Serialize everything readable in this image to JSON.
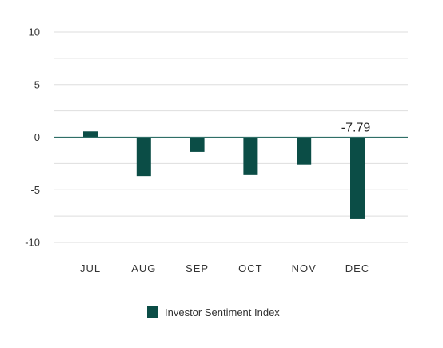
{
  "chart_data": {
    "type": "bar",
    "categories": [
      "JUL",
      "AUG",
      "SEP",
      "OCT",
      "NOV",
      "DEC"
    ],
    "series": [
      {
        "name": "Investor Sentiment Index",
        "values": [
          0.55,
          -3.7,
          -1.4,
          -3.6,
          -2.6,
          -7.79
        ]
      }
    ],
    "ylim": [
      -10,
      10
    ],
    "y_ticks": [
      10,
      5,
      0,
      -5,
      -10
    ],
    "grid": true,
    "legend_position": "bottom-center",
    "data_labels": [
      {
        "category": "DEC",
        "text": "-7.79"
      }
    ],
    "colors": {
      "bar": "#0b4d46",
      "zero_line": "#2f6f67",
      "grid": "#dedede",
      "text": "#333333"
    }
  }
}
